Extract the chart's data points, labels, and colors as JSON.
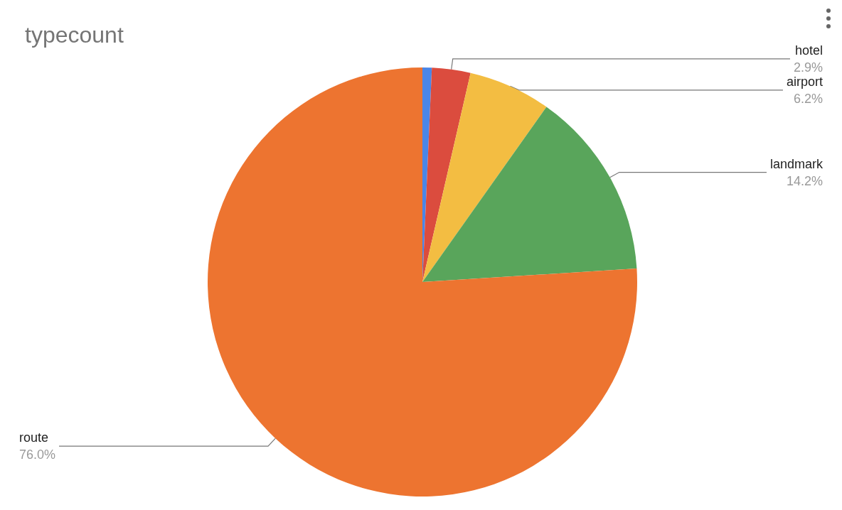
{
  "chart_data": {
    "type": "pie",
    "title": "typecount",
    "categories": [
      null,
      "hotel",
      "airport",
      "landmark",
      "route"
    ],
    "values": [
      0.7,
      2.9,
      6.2,
      14.2,
      76.0
    ],
    "colors": [
      "#4a86e8",
      "#db4c3e",
      "#f3bd42",
      "#59a55b",
      "#ed7430"
    ],
    "value_labels": [
      null,
      "2.9%",
      "6.2%",
      "14.2%",
      "76.0%"
    ],
    "legend": false
  }
}
